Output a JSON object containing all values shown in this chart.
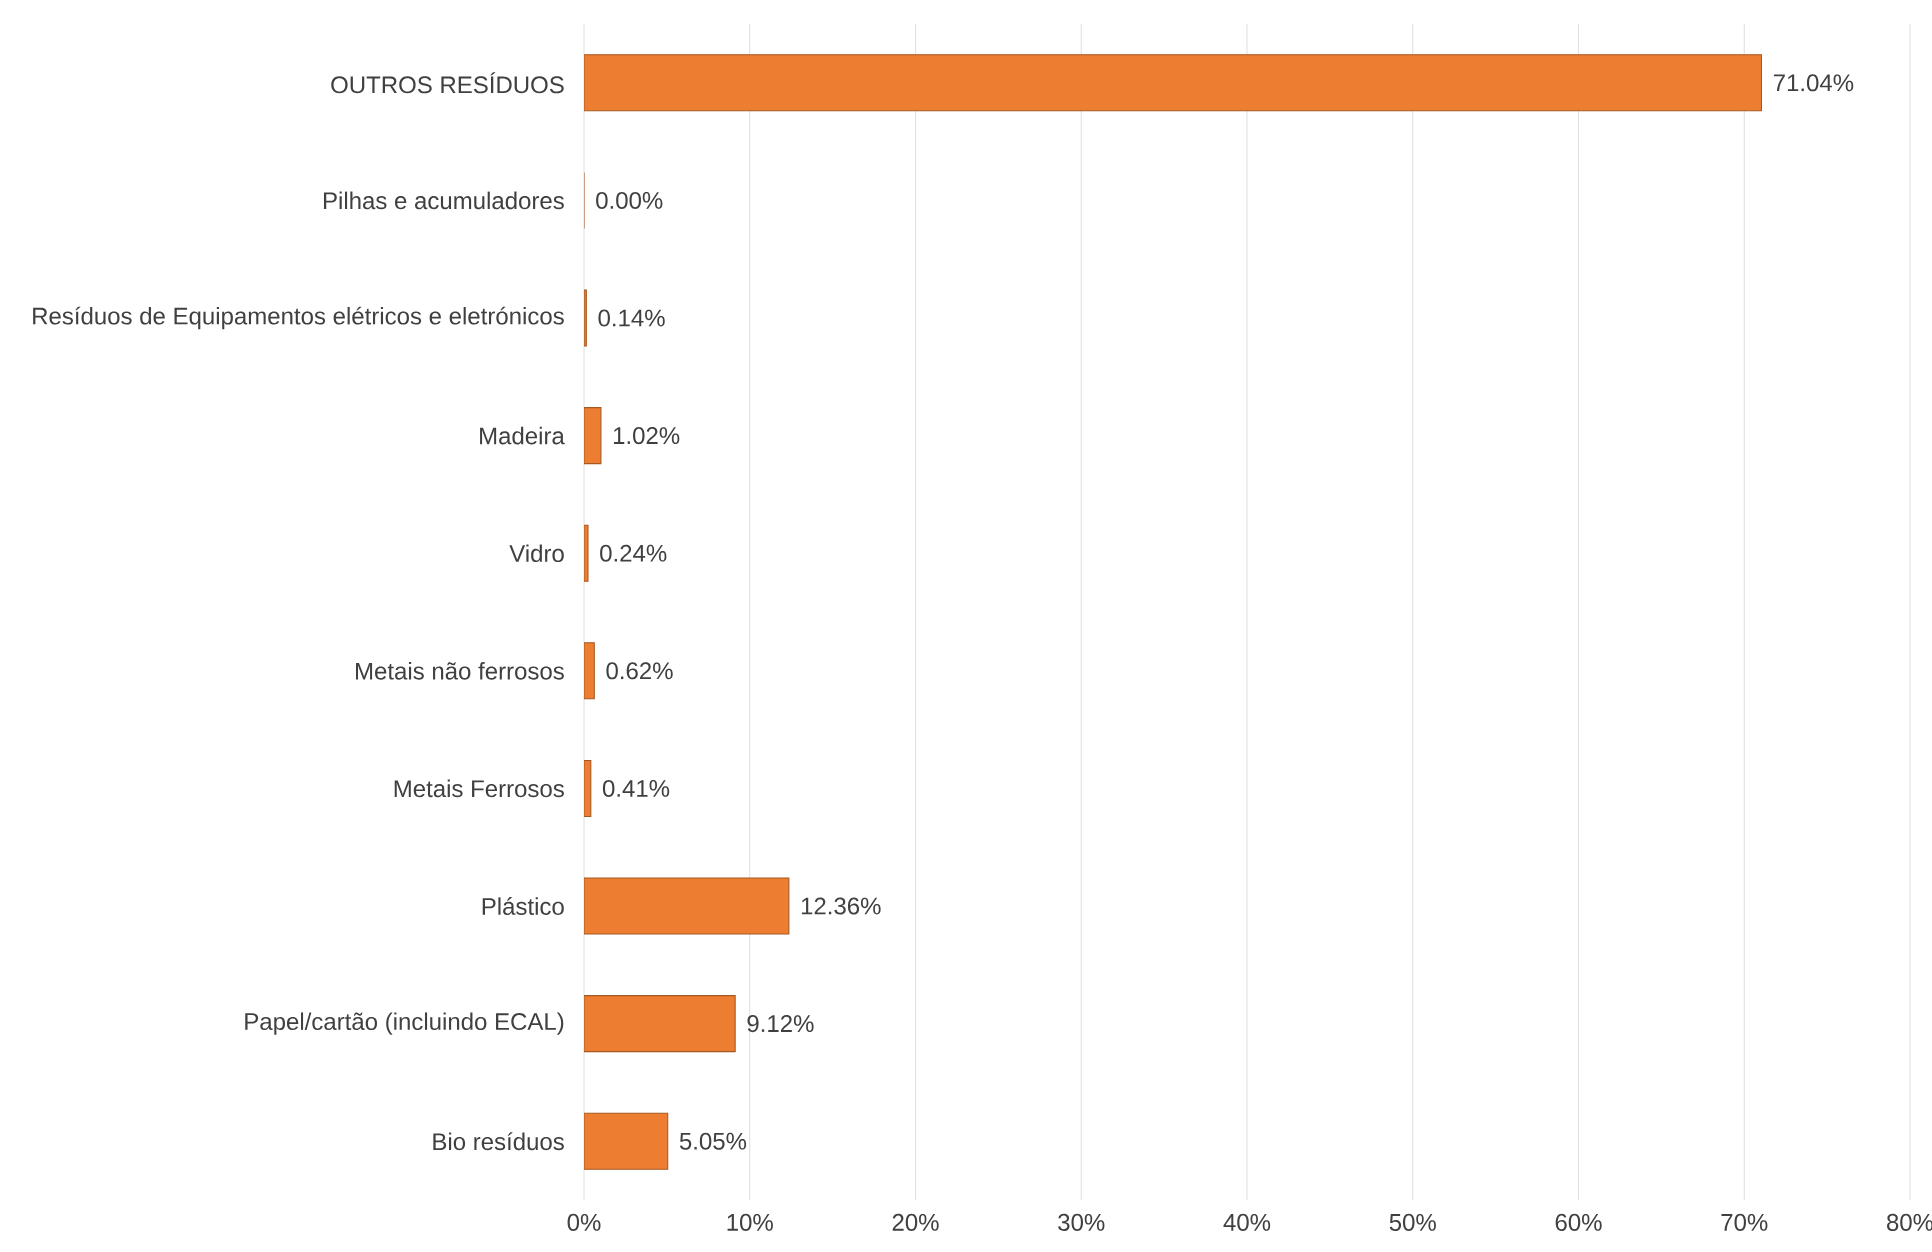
{
  "chart_data": {
    "type": "bar",
    "orientation": "horizontal",
    "categories": [
      "OUTROS RESÍDUOS",
      "Pilhas e acumuladores",
      "Resíduos de Equipamentos elétricos e eletrónicos",
      "Madeira",
      "Vidro",
      "Metais não ferrosos",
      "Metais Ferrosos",
      "Plástico",
      "Papel/cartão (incluindo ECAL)",
      "Bio resíduos"
    ],
    "values": [
      71.04,
      0.0,
      0.14,
      1.02,
      0.24,
      0.62,
      0.41,
      12.36,
      9.12,
      5.05
    ],
    "value_labels": [
      "71.04%",
      "0.00%",
      "0.14%",
      "1.02%",
      "0.24%",
      "0.62%",
      "0.41%",
      "12.36%",
      "9.12%",
      "5.05%"
    ],
    "color": "#ed7d31",
    "xlim": [
      0,
      80
    ],
    "xticks": [
      {
        "value": 0,
        "label": "0%"
      },
      {
        "value": 10,
        "label": "10%"
      },
      {
        "value": 20,
        "label": "20%"
      },
      {
        "value": 30,
        "label": "30%"
      },
      {
        "value": 40,
        "label": "40%"
      },
      {
        "value": 50,
        "label": "50%"
      },
      {
        "value": 60,
        "label": "60%"
      },
      {
        "value": 70,
        "label": "70%"
      },
      {
        "value": 80,
        "label": "80%"
      }
    ],
    "grid": "x"
  }
}
